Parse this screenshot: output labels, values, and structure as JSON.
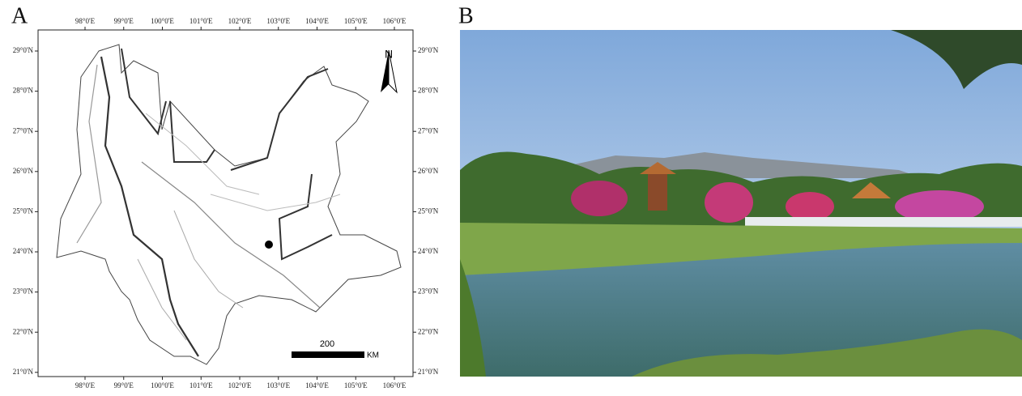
{
  "panel_a": {
    "label": "A",
    "lon_ticks": [
      "98°0'E",
      "99°0'E",
      "100°0'E",
      "101°0'E",
      "102°0'E",
      "103°0'E",
      "104°0'E",
      "105°0'E",
      "106°0'E"
    ],
    "lat_ticks": [
      "29°0'N",
      "28°0'N",
      "27°0'N",
      "26°0'N",
      "25°0'N",
      "24°0'N",
      "23°0'N",
      "22°0'N",
      "21°0'N"
    ],
    "north": "N",
    "scale_value": "200",
    "scale_unit": "KM"
  },
  "panel_b": {
    "label": "B"
  }
}
